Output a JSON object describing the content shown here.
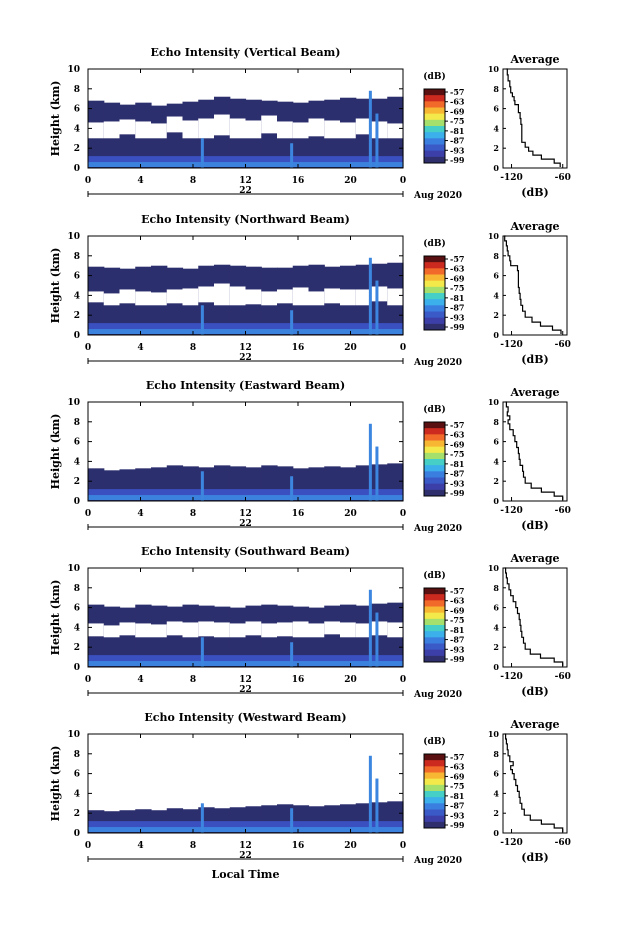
{
  "chart_data": {
    "type": "heatmap",
    "shared": {
      "xlabel": "Local Time",
      "x_ticks": [
        "0",
        "4",
        "8",
        "12",
        "16",
        "20",
        "0"
      ],
      "x_range": [
        0,
        24
      ],
      "y_ticks": [
        "0",
        "2",
        "4",
        "6",
        "8",
        "10"
      ],
      "y_range": [
        0,
        10
      ],
      "ylabel": "Height (km)",
      "day_label": "22",
      "month_label": "Aug 2020",
      "colorbar": {
        "unit": "(dB)",
        "ticks": [
          "-57",
          "-63",
          "-69",
          "-75",
          "-81",
          "-87",
          "-93",
          "-99"
        ],
        "colors": [
          "#5a1010",
          "#cc2a1e",
          "#f26a2a",
          "#f7b733",
          "#f3e94a",
          "#a6e06c",
          "#45cfc6",
          "#3bb0ea",
          "#3a7fe0",
          "#3a5ac8",
          "#3c3fa8",
          "#2f2f6e"
        ]
      },
      "profile": {
        "title": "Average",
        "xlabel": "(dB)",
        "x_ticks": [
          "-120",
          "-60"
        ],
        "x_range": [
          -130,
          -55
        ],
        "y_range": [
          0,
          10
        ]
      }
    },
    "panels": [
      {
        "title": "Echo Intensity (Vertical Beam)",
        "fill_tops": [
          6.8,
          6.6,
          6.4,
          6.6,
          6.3,
          6.5,
          6.7,
          6.9,
          7.2,
          7.0,
          6.9,
          6.8,
          6.7,
          6.6,
          6.8,
          6.9,
          7.1,
          7.0,
          7.0,
          7.2
        ],
        "gap_lo": [
          3.0,
          3.0,
          3.4,
          3.0,
          3.0,
          3.6,
          3.0,
          3.0,
          3.3,
          3.0,
          3.0,
          3.5,
          3.0,
          3.0,
          3.2,
          3.0,
          3.0,
          3.4,
          3.0,
          3.0
        ],
        "gap_hi": [
          4.6,
          4.7,
          4.9,
          4.7,
          4.5,
          5.2,
          4.8,
          5.0,
          5.4,
          5.0,
          4.8,
          5.3,
          4.7,
          4.6,
          5.0,
          4.8,
          4.6,
          5.0,
          4.7,
          4.5
        ],
        "profile": [
          [
            -63,
            0.1
          ],
          [
            -70,
            0.5
          ],
          [
            -85,
            0.9
          ],
          [
            -95,
            1.3
          ],
          [
            -100,
            1.7
          ],
          [
            -104,
            2.1
          ],
          [
            -108,
            2.6
          ],
          [
            -108,
            3.2
          ],
          [
            -108,
            3.8
          ],
          [
            -109,
            4.4
          ],
          [
            -110,
            5.0
          ],
          [
            -112,
            5.6
          ],
          [
            -112,
            6.0
          ],
          [
            -116,
            6.4
          ],
          [
            -117,
            6.8
          ],
          [
            -119,
            7.2
          ],
          [
            -121,
            7.6
          ],
          [
            -122,
            8.2
          ],
          [
            -124,
            8.8
          ],
          [
            -125,
            9.4
          ],
          [
            -126,
            10.0
          ]
        ]
      },
      {
        "title": "Echo Intensity (Northward Beam)",
        "fill_tops": [
          6.9,
          6.8,
          6.7,
          6.9,
          7.0,
          6.8,
          6.7,
          7.0,
          7.1,
          7.0,
          6.9,
          6.8,
          6.8,
          7.0,
          7.1,
          6.9,
          7.0,
          7.1,
          7.2,
          7.3
        ],
        "gap_lo": [
          3.3,
          3.0,
          3.2,
          3.0,
          3.0,
          3.2,
          3.0,
          3.3,
          3.0,
          3.0,
          3.1,
          3.0,
          3.2,
          3.0,
          3.0,
          3.2,
          3.0,
          3.0,
          3.4,
          3.0
        ],
        "gap_hi": [
          4.4,
          4.2,
          4.6,
          4.4,
          4.3,
          4.6,
          4.7,
          4.9,
          5.2,
          4.9,
          4.6,
          4.4,
          4.6,
          4.8,
          4.4,
          4.7,
          4.6,
          4.6,
          4.9,
          4.7
        ],
        "profile": [
          [
            -62,
            0.1
          ],
          [
            -72,
            0.5
          ],
          [
            -86,
            0.9
          ],
          [
            -96,
            1.3
          ],
          [
            -104,
            1.8
          ],
          [
            -107,
            2.4
          ],
          [
            -109,
            3.0
          ],
          [
            -110,
            3.6
          ],
          [
            -111,
            4.2
          ],
          [
            -112,
            4.8
          ],
          [
            -112,
            5.4
          ],
          [
            -112,
            6.0
          ],
          [
            -113,
            6.5
          ],
          [
            -121,
            7.0
          ],
          [
            -122,
            7.5
          ],
          [
            -124,
            8.0
          ],
          [
            -125,
            8.5
          ],
          [
            -126,
            9.0
          ],
          [
            -128,
            9.5
          ],
          [
            -127,
            10.0
          ]
        ]
      },
      {
        "title": "Echo Intensity (Eastward Beam)",
        "fill_tops": [
          3.3,
          3.1,
          3.2,
          3.3,
          3.4,
          3.6,
          3.5,
          3.4,
          3.6,
          3.5,
          3.4,
          3.6,
          3.5,
          3.3,
          3.4,
          3.5,
          3.4,
          3.6,
          3.7,
          3.8
        ],
        "gap_lo": [
          0,
          0,
          0,
          0,
          0,
          0,
          0,
          0,
          0,
          0,
          0,
          0,
          0,
          0,
          0,
          0,
          0,
          0,
          0,
          0
        ],
        "gap_hi": [
          0,
          0,
          0,
          0,
          0,
          0,
          0,
          0,
          0,
          0,
          0,
          0,
          0,
          0,
          0,
          0,
          0,
          0,
          0,
          0
        ],
        "profile": [
          [
            -60,
            0.1
          ],
          [
            -70,
            0.5
          ],
          [
            -85,
            0.9
          ],
          [
            -97,
            1.3
          ],
          [
            -104,
            1.8
          ],
          [
            -106,
            2.4
          ],
          [
            -107,
            3.0
          ],
          [
            -110,
            3.6
          ],
          [
            -111,
            4.2
          ],
          [
            -112,
            4.8
          ],
          [
            -114,
            5.4
          ],
          [
            -116,
            6.0
          ],
          [
            -118,
            6.6
          ],
          [
            -122,
            7.2
          ],
          [
            -124,
            7.8
          ],
          [
            -122,
            8.2
          ],
          [
            -125,
            8.6
          ],
          [
            -124,
            9.0
          ],
          [
            -126,
            9.5
          ],
          [
            -127,
            10.0
          ]
        ]
      },
      {
        "title": "Echo Intensity (Southward Beam)",
        "fill_tops": [
          6.3,
          6.1,
          6.0,
          6.3,
          6.2,
          6.1,
          6.3,
          6.2,
          6.1,
          6.0,
          6.2,
          6.3,
          6.2,
          6.1,
          6.0,
          6.2,
          6.3,
          6.2,
          6.4,
          6.5
        ],
        "gap_lo": [
          3.1,
          3.0,
          3.2,
          3.0,
          3.0,
          3.2,
          3.0,
          3.1,
          3.0,
          3.0,
          3.2,
          3.0,
          3.1,
          3.0,
          3.0,
          3.3,
          3.0,
          3.0,
          3.2,
          3.0
        ],
        "gap_hi": [
          4.4,
          4.2,
          4.5,
          4.4,
          4.3,
          4.6,
          4.5,
          4.6,
          4.5,
          4.4,
          4.6,
          4.4,
          4.5,
          4.6,
          4.4,
          4.6,
          4.5,
          4.4,
          4.6,
          4.5
        ],
        "profile": [
          [
            -60,
            0.1
          ],
          [
            -70,
            0.5
          ],
          [
            -86,
            0.9
          ],
          [
            -98,
            1.3
          ],
          [
            -104,
            1.8
          ],
          [
            -106,
            2.4
          ],
          [
            -108,
            3.0
          ],
          [
            -109,
            3.6
          ],
          [
            -110,
            4.2
          ],
          [
            -111,
            4.8
          ],
          [
            -113,
            5.4
          ],
          [
            -115,
            6.0
          ],
          [
            -118,
            6.6
          ],
          [
            -121,
            7.2
          ],
          [
            -123,
            7.8
          ],
          [
            -125,
            8.4
          ],
          [
            -126,
            9.0
          ],
          [
            -127,
            9.5
          ],
          [
            -128,
            10.0
          ]
        ]
      },
      {
        "title": "Echo Intensity (Westward Beam)",
        "fill_tops": [
          2.3,
          2.2,
          2.3,
          2.4,
          2.3,
          2.5,
          2.4,
          2.6,
          2.5,
          2.6,
          2.7,
          2.8,
          2.9,
          2.8,
          2.7,
          2.8,
          2.9,
          3.0,
          3.1,
          3.2
        ],
        "gap_lo": [
          0,
          0,
          0,
          0,
          0,
          0,
          0,
          0,
          0,
          0,
          0,
          0,
          0,
          0,
          0,
          0,
          0,
          0,
          0,
          0
        ],
        "gap_hi": [
          0,
          0,
          0,
          0,
          0,
          0,
          0,
          0,
          0,
          0,
          0,
          0,
          0,
          0,
          0,
          0,
          0,
          0,
          0,
          0
        ],
        "profile": [
          [
            -60,
            0.1
          ],
          [
            -70,
            0.5
          ],
          [
            -85,
            0.9
          ],
          [
            -98,
            1.3
          ],
          [
            -105,
            1.8
          ],
          [
            -108,
            2.4
          ],
          [
            -110,
            3.0
          ],
          [
            -111,
            3.6
          ],
          [
            -113,
            4.2
          ],
          [
            -115,
            4.8
          ],
          [
            -117,
            5.4
          ],
          [
            -119,
            6.0
          ],
          [
            -121,
            6.4
          ],
          [
            -118,
            6.8
          ],
          [
            -122,
            7.2
          ],
          [
            -124,
            7.8
          ],
          [
            -125,
            8.4
          ],
          [
            -126,
            9.0
          ],
          [
            -127,
            9.5
          ],
          [
            -128,
            10.0
          ]
        ]
      }
    ]
  }
}
